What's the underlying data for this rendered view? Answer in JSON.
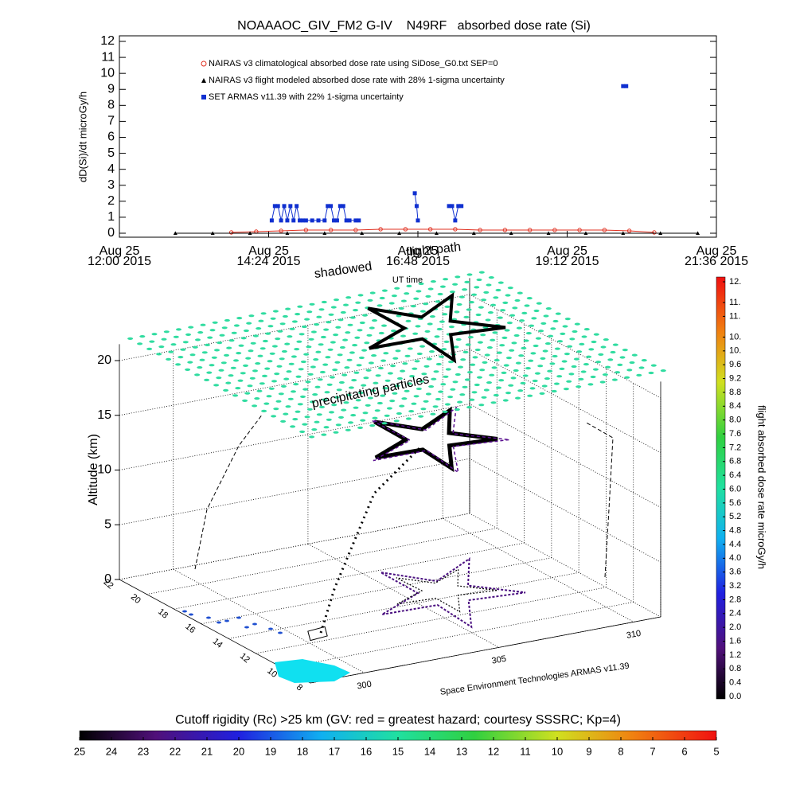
{
  "chart_data": {
    "type": "line",
    "title": "NOAAAOC_GIV_FM2 G-IV    N49RF   absorbed dose rate (Si)",
    "x_label": "UT time",
    "y_label": "dD(Si)/dt microGy/h",
    "xlim": [
      12,
      21.6
    ],
    "ylim": [
      0,
      12
    ],
    "xticks": [
      {
        "value": 12,
        "label": "Aug 25\n12:00 2015"
      },
      {
        "value": 14.4,
        "label": "Aug 25\n14:24 2015"
      },
      {
        "value": 16.8,
        "label": "Aug 25\n16:48 2015"
      },
      {
        "value": 19.2,
        "label": "Aug 25\n19:12 2015"
      },
      {
        "value": 21.6,
        "label": "Aug 25\n21:36 2015"
      }
    ],
    "yticks": [
      0,
      1,
      2,
      3,
      4,
      5,
      6,
      7,
      8,
      9,
      10,
      11,
      12
    ],
    "series": [
      {
        "name": "NAIRAS v3 climatological absorbed dose rate using SiDose_G0.txt SEP=0",
        "color": "#e03020",
        "marker": "circle",
        "x": [
          13.8,
          14.2,
          14.6,
          15.0,
          15.4,
          15.8,
          16.2,
          16.6,
          17.0,
          17.4,
          17.8,
          18.2,
          18.6,
          19.0,
          19.4,
          19.8,
          20.2,
          20.6
        ],
        "values": [
          0.05,
          0.1,
          0.15,
          0.2,
          0.2,
          0.2,
          0.25,
          0.25,
          0.25,
          0.25,
          0.2,
          0.2,
          0.2,
          0.2,
          0.2,
          0.2,
          0.15,
          0.05
        ]
      },
      {
        "name": "NAIRAS v3 flight modeled absorbed dose rate with 28% 1-sigma uncertainty",
        "color": "#000000",
        "marker": "triangle",
        "x": [
          12.9,
          13.5,
          14.1,
          14.7,
          15.3,
          15.9,
          16.5,
          17.1,
          17.7,
          18.3,
          18.9,
          19.5,
          20.1,
          20.7,
          21.3
        ],
        "values": [
          0,
          0,
          0,
          0,
          0,
          0,
          0,
          0,
          0,
          0,
          0,
          0,
          0,
          0,
          0
        ]
      },
      {
        "name": "SET ARMAS v11.39 with 22% 1-sigma uncertainty",
        "color": "#1030d0",
        "marker": "square",
        "x": [
          14.45,
          14.5,
          14.55,
          14.6,
          14.65,
          14.7,
          14.75,
          14.8,
          14.85,
          14.9,
          14.95,
          15.0,
          15.1,
          15.2,
          15.3,
          15.35,
          15.4,
          15.45,
          15.5,
          15.55,
          15.6,
          15.65,
          15.7,
          15.8,
          15.85,
          16.3,
          16.75,
          16.78,
          16.8,
          17.0,
          17.3,
          17.35,
          17.4,
          17.45,
          17.5,
          18.5,
          20.1,
          20.15
        ],
        "values": [
          0.8,
          1.7,
          1.7,
          0.8,
          1.7,
          0.8,
          1.7,
          0.8,
          1.7,
          0.8,
          0.8,
          0.8,
          0.8,
          0.8,
          0.8,
          1.7,
          1.7,
          0.8,
          0.8,
          1.7,
          1.7,
          0.8,
          0.8,
          0.8,
          0.8,
          null,
          2.5,
          1.7,
          0.8,
          null,
          1.7,
          1.7,
          0.8,
          1.7,
          1.7,
          null,
          9.2,
          9.2
        ]
      }
    ]
  },
  "map3d": {
    "z_label": "Altitude (km)",
    "zticks": [
      0,
      5,
      10,
      15,
      20
    ],
    "lat_ticks": [
      22,
      20,
      18,
      16,
      14,
      12,
      10,
      8
    ],
    "lon_ticks": [
      300,
      305,
      310
    ],
    "annotations": [
      "shadowed",
      "flight path",
      "precipitating particles"
    ],
    "credit": "Space Environment Technologies ARMAS v11.39"
  },
  "colorbar_right": {
    "label": "flight absorbed dose rate microGy/h",
    "range": [
      0,
      12
    ],
    "ticks": [
      {
        "value": 0,
        "label": "0.0"
      },
      {
        "value": 0.4,
        "label": "0.4"
      },
      {
        "value": 0.8,
        "label": "0.8"
      },
      {
        "value": 1.2,
        "label": "1.2"
      },
      {
        "value": 1.6,
        "label": "1.6"
      },
      {
        "value": 2,
        "label": "2.0"
      },
      {
        "value": 2.4,
        "label": "2.4"
      },
      2.8,
      3.2,
      3.6,
      {
        "value": 4,
        "label": "4.0"
      },
      4.4,
      4.8,
      5.2,
      5.6,
      {
        "value": 6,
        "label": "6.0"
      },
      6.4,
      6.8,
      7.2,
      7.6,
      {
        "value": 8,
        "label": "8.0"
      },
      8.4,
      8.8,
      9.2,
      9.6,
      {
        "value": 10,
        "label": "10."
      },
      {
        "value": 10.4,
        "label": "10."
      },
      {
        "value": 11,
        "label": "11."
      },
      {
        "value": 11.4,
        "label": "11."
      },
      {
        "value": 12,
        "label": "12."
      }
    ]
  },
  "colorbar_bottom": {
    "label": "Cutoff rigidity (Rc) >25 km (GV: red = greatest hazard; courtesy SSSRC; Kp=4)",
    "range": [
      25,
      5
    ],
    "ticks": [
      25,
      24,
      23,
      22,
      21,
      20,
      19,
      18,
      17,
      16,
      15,
      14,
      13,
      12,
      11,
      10,
      9,
      8,
      7,
      6,
      5
    ]
  }
}
